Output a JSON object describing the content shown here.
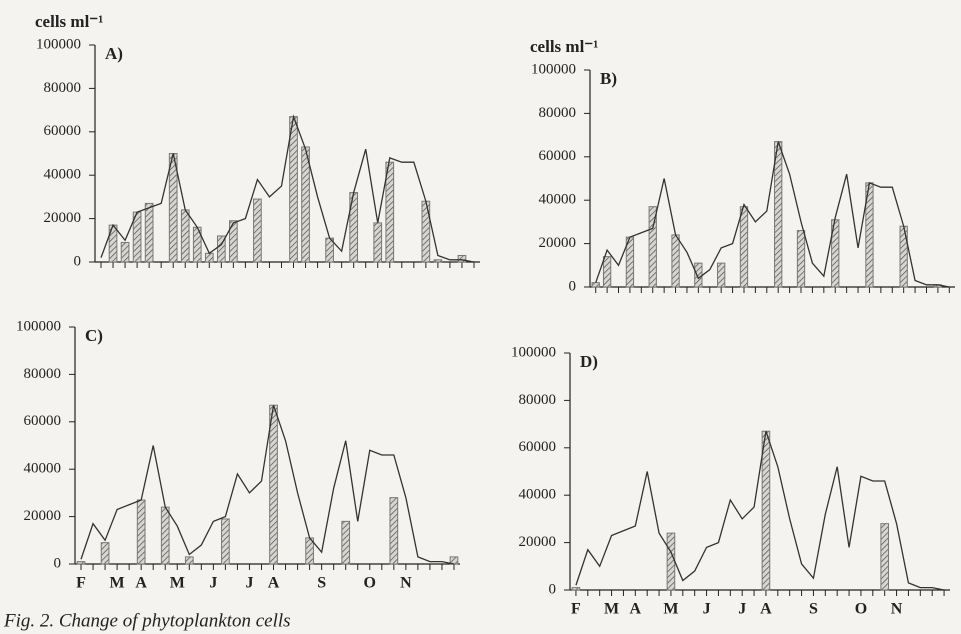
{
  "chart_data": [
    {
      "type": "combo",
      "title": "A)",
      "ylabel": "cells ml⁻¹",
      "ylim": [
        0,
        100000
      ],
      "yticks": [
        0,
        20000,
        40000,
        60000,
        80000,
        100000
      ],
      "categories": [
        null,
        null,
        null,
        null,
        null,
        null,
        null,
        null,
        null,
        null,
        null,
        null,
        null,
        null,
        null,
        null,
        null,
        null,
        null,
        null,
        null,
        null,
        null,
        null,
        null,
        null,
        null,
        null,
        null,
        null,
        null,
        null
      ],
      "series": [
        {
          "type": "line",
          "color": "#333333",
          "values": [
            2000,
            17000,
            10000,
            23000,
            25000,
            27000,
            50000,
            24000,
            16000,
            4000,
            8000,
            18000,
            20000,
            38000,
            30000,
            35000,
            67000,
            52000,
            30000,
            11000,
            5000,
            32000,
            52000,
            18000,
            48000,
            46000,
            46000,
            28000,
            3000,
            1000,
            1000,
            0
          ]
        },
        {
          "type": "bar",
          "color": "#777777",
          "values": [
            null,
            17000,
            9000,
            23000,
            27000,
            null,
            50000,
            24000,
            16000,
            4000,
            12000,
            19000,
            null,
            29000,
            null,
            null,
            67000,
            53000,
            null,
            11000,
            null,
            32000,
            null,
            18000,
            46000,
            null,
            null,
            28000,
            1000,
            null,
            3000,
            null
          ]
        }
      ]
    },
    {
      "type": "combo",
      "title": "B)",
      "ylabel": "cells ml⁻¹",
      "ylim": [
        0,
        100000
      ],
      "yticks": [
        0,
        20000,
        40000,
        60000,
        80000,
        100000
      ],
      "categories": [
        null,
        null,
        null,
        null,
        null,
        null,
        null,
        null,
        null,
        null,
        null,
        null,
        null,
        null,
        null,
        null,
        null,
        null,
        null,
        null,
        null,
        null,
        null,
        null,
        null,
        null,
        null,
        null,
        null,
        null,
        null,
        null
      ],
      "series": [
        {
          "type": "line",
          "color": "#333333",
          "values": [
            2000,
            17000,
            10000,
            23000,
            25000,
            27000,
            50000,
            24000,
            16000,
            4000,
            8000,
            18000,
            20000,
            38000,
            30000,
            35000,
            67000,
            52000,
            30000,
            11000,
            5000,
            32000,
            52000,
            18000,
            48000,
            46000,
            46000,
            28000,
            3000,
            1000,
            1000,
            0
          ]
        },
        {
          "type": "bar",
          "color": "#777777",
          "values": [
            2000,
            14000,
            null,
            23000,
            null,
            37000,
            null,
            24000,
            null,
            11000,
            null,
            11000,
            null,
            37000,
            null,
            null,
            67000,
            null,
            26000,
            null,
            null,
            31000,
            null,
            null,
            48000,
            null,
            null,
            28000,
            null,
            null,
            1000,
            null
          ]
        }
      ]
    },
    {
      "type": "combo",
      "title": "C)",
      "ylim": [
        0,
        100000
      ],
      "yticks": [
        0,
        20000,
        40000,
        60000,
        80000,
        100000
      ],
      "categories": [
        "F",
        null,
        null,
        "M",
        null,
        "A",
        null,
        null,
        "M",
        null,
        null,
        "J",
        null,
        null,
        "J",
        null,
        "A",
        null,
        null,
        null,
        "S",
        null,
        null,
        null,
        "O",
        null,
        null,
        "N",
        null,
        null,
        null,
        null
      ],
      "series": [
        {
          "type": "line",
          "color": "#333333",
          "values": [
            2000,
            17000,
            10000,
            23000,
            25000,
            27000,
            50000,
            24000,
            16000,
            4000,
            8000,
            18000,
            20000,
            38000,
            30000,
            35000,
            67000,
            52000,
            30000,
            11000,
            5000,
            32000,
            52000,
            18000,
            48000,
            46000,
            46000,
            28000,
            3000,
            1000,
            1000,
            0
          ]
        },
        {
          "type": "bar",
          "color": "#777777",
          "values": [
            1000,
            null,
            9000,
            null,
            null,
            27000,
            null,
            24000,
            null,
            3000,
            null,
            null,
            19000,
            null,
            null,
            null,
            67000,
            null,
            null,
            11000,
            null,
            null,
            18000,
            null,
            null,
            null,
            28000,
            null,
            null,
            null,
            null,
            3000
          ]
        }
      ]
    },
    {
      "type": "combo",
      "title": "D)",
      "ylim": [
        0,
        100000
      ],
      "yticks": [
        0,
        20000,
        40000,
        60000,
        80000,
        100000
      ],
      "categories": [
        "F",
        null,
        null,
        "M",
        null,
        "A",
        null,
        null,
        "M",
        null,
        null,
        "J",
        null,
        null,
        "J",
        null,
        "A",
        null,
        null,
        null,
        "S",
        null,
        null,
        null,
        "O",
        null,
        null,
        "N",
        null,
        null,
        null,
        null
      ],
      "series": [
        {
          "type": "line",
          "color": "#333333",
          "values": [
            2000,
            17000,
            10000,
            23000,
            25000,
            27000,
            50000,
            24000,
            16000,
            4000,
            8000,
            18000,
            20000,
            38000,
            30000,
            35000,
            67000,
            52000,
            30000,
            11000,
            5000,
            32000,
            52000,
            18000,
            48000,
            46000,
            46000,
            28000,
            3000,
            1000,
            1000,
            0
          ]
        },
        {
          "type": "bar",
          "color": "#777777",
          "values": [
            1000,
            null,
            null,
            null,
            null,
            null,
            null,
            null,
            24000,
            null,
            null,
            null,
            null,
            null,
            null,
            null,
            67000,
            null,
            null,
            null,
            null,
            null,
            null,
            null,
            null,
            null,
            28000,
            null,
            null,
            null,
            null,
            null
          ]
        }
      ]
    }
  ],
  "caption": "Fig. 2. Change of phytoplankton cells"
}
